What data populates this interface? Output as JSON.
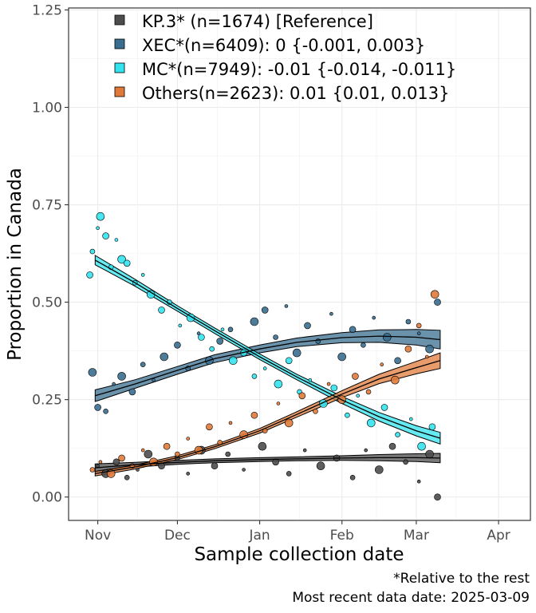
{
  "chart_data": {
    "type": "scatter",
    "xlabel": "Sample collection date",
    "ylabel": "Proportion in Canada",
    "x_ticks": [
      "Nov",
      "Dec",
      "Jan",
      "Feb",
      "Mar",
      "Apr"
    ],
    "y_ticks": [
      "0.00",
      "0.25",
      "0.50",
      "0.75",
      "1.00",
      "1.25"
    ],
    "xlim": [
      "2024-10-21",
      "2025-04-13"
    ],
    "ylim": [
      -0.06,
      1.255
    ],
    "grid": true,
    "legend_position": "top-left",
    "caption_lines": [
      "*Relative to the rest",
      "Most recent data date: 2025-03-09"
    ],
    "series": [
      {
        "name": "KP.3* (n=1674)  [Reference]",
        "color": "#4d4d4d",
        "fit": {
          "x": [
            "2024-10-31",
            "2024-11-15",
            "2024-12-01",
            "2024-12-15",
            "2025-01-01",
            "2025-01-15",
            "2025-02-01",
            "2025-02-15",
            "2025-03-01",
            "2025-03-10"
          ],
          "y": [
            0.075,
            0.083,
            0.089,
            0.093,
            0.096,
            0.098,
            0.1,
            0.101,
            0.101,
            0.1
          ],
          "lower": [
            0.065,
            0.077,
            0.084,
            0.088,
            0.091,
            0.093,
            0.094,
            0.093,
            0.091,
            0.088
          ],
          "upper": [
            0.085,
            0.089,
            0.094,
            0.098,
            0.101,
            0.103,
            0.106,
            0.109,
            0.111,
            0.112
          ]
        },
        "points": [
          {
            "x": "2024-11-01",
            "y": 0.08
          },
          {
            "x": "2024-11-04",
            "y": 0.06
          },
          {
            "x": "2024-11-08",
            "y": 0.09
          },
          {
            "x": "2024-11-12",
            "y": 0.05
          },
          {
            "x": "2024-11-16",
            "y": 0.07
          },
          {
            "x": "2024-11-20",
            "y": 0.11
          },
          {
            "x": "2024-11-25",
            "y": 0.08
          },
          {
            "x": "2024-12-01",
            "y": 0.1
          },
          {
            "x": "2024-12-05",
            "y": 0.06
          },
          {
            "x": "2024-12-10",
            "y": 0.12
          },
          {
            "x": "2024-12-15",
            "y": 0.08
          },
          {
            "x": "2024-12-20",
            "y": 0.11
          },
          {
            "x": "2024-12-26",
            "y": 0.07
          },
          {
            "x": "2025-01-02",
            "y": 0.13
          },
          {
            "x": "2025-01-07",
            "y": 0.09
          },
          {
            "x": "2025-01-12",
            "y": 0.06
          },
          {
            "x": "2025-01-18",
            "y": 0.12
          },
          {
            "x": "2025-01-24",
            "y": 0.08
          },
          {
            "x": "2025-01-30",
            "y": 0.1
          },
          {
            "x": "2025-02-05",
            "y": 0.05
          },
          {
            "x": "2025-02-10",
            "y": 0.12
          },
          {
            "x": "2025-02-15",
            "y": 0.07
          },
          {
            "x": "2025-02-20",
            "y": 0.13
          },
          {
            "x": "2025-02-25",
            "y": 0.09
          },
          {
            "x": "2025-03-02",
            "y": 0.04
          },
          {
            "x": "2025-03-06",
            "y": 0.11
          },
          {
            "x": "2025-03-09",
            "y": 0.0
          }
        ]
      },
      {
        "name": "XEC*(n=6409): 0 {-0.001, 0.003}",
        "color": "#3a6e8f",
        "fit": {
          "x": [
            "2024-10-31",
            "2024-11-15",
            "2024-12-01",
            "2024-12-15",
            "2025-01-01",
            "2025-01-15",
            "2025-02-01",
            "2025-02-15",
            "2025-03-01",
            "2025-03-10"
          ],
          "y": [
            0.26,
            0.29,
            0.325,
            0.355,
            0.38,
            0.397,
            0.409,
            0.413,
            0.41,
            0.404
          ],
          "lower": [
            0.245,
            0.279,
            0.315,
            0.345,
            0.37,
            0.386,
            0.396,
            0.397,
            0.39,
            0.38
          ],
          "upper": [
            0.275,
            0.301,
            0.335,
            0.365,
            0.39,
            0.408,
            0.422,
            0.429,
            0.43,
            0.428
          ]
        },
        "points": [
          {
            "x": "2024-10-30",
            "y": 0.32
          },
          {
            "x": "2024-11-01",
            "y": 0.23
          },
          {
            "x": "2024-11-04",
            "y": 0.22
          },
          {
            "x": "2024-11-07",
            "y": 0.29
          },
          {
            "x": "2024-11-10",
            "y": 0.31
          },
          {
            "x": "2024-11-14",
            "y": 0.27
          },
          {
            "x": "2024-11-18",
            "y": 0.34
          },
          {
            "x": "2024-11-22",
            "y": 0.3
          },
          {
            "x": "2024-11-26",
            "y": 0.36
          },
          {
            "x": "2024-12-01",
            "y": 0.39
          },
          {
            "x": "2024-12-05",
            "y": 0.33
          },
          {
            "x": "2024-12-09",
            "y": 0.42
          },
          {
            "x": "2024-12-13",
            "y": 0.35
          },
          {
            "x": "2024-12-17",
            "y": 0.4
          },
          {
            "x": "2024-12-21",
            "y": 0.43
          },
          {
            "x": "2024-12-26",
            "y": 0.37
          },
          {
            "x": "2024-12-30",
            "y": 0.45
          },
          {
            "x": "2025-01-03",
            "y": 0.48
          },
          {
            "x": "2025-01-07",
            "y": 0.41
          },
          {
            "x": "2025-01-11",
            "y": 0.49
          },
          {
            "x": "2025-01-15",
            "y": 0.37
          },
          {
            "x": "2025-01-19",
            "y": 0.44
          },
          {
            "x": "2025-01-23",
            "y": 0.4
          },
          {
            "x": "2025-01-28",
            "y": 0.47
          },
          {
            "x": "2025-02-01",
            "y": 0.36
          },
          {
            "x": "2025-02-05",
            "y": 0.43
          },
          {
            "x": "2025-02-09",
            "y": 0.39
          },
          {
            "x": "2025-02-13",
            "y": 0.46
          },
          {
            "x": "2025-02-18",
            "y": 0.41
          },
          {
            "x": "2025-02-22",
            "y": 0.35
          },
          {
            "x": "2025-02-26",
            "y": 0.45
          },
          {
            "x": "2025-03-02",
            "y": 0.42
          },
          {
            "x": "2025-03-06",
            "y": 0.38
          },
          {
            "x": "2025-03-09",
            "y": 0.5
          }
        ]
      },
      {
        "name": "MC*(n=7949): -0.01 {-0.014, -0.011}",
        "color": "#33e3ee",
        "fit": {
          "x": [
            "2024-10-31",
            "2024-11-15",
            "2024-12-01",
            "2024-12-15",
            "2025-01-01",
            "2025-01-15",
            "2025-02-01",
            "2025-02-15",
            "2025-03-01",
            "2025-03-10"
          ],
          "y": [
            0.608,
            0.55,
            0.484,
            0.427,
            0.36,
            0.308,
            0.249,
            0.206,
            0.17,
            0.151
          ],
          "lower": [
            0.596,
            0.541,
            0.477,
            0.42,
            0.353,
            0.301,
            0.24,
            0.195,
            0.157,
            0.136
          ],
          "upper": [
            0.62,
            0.559,
            0.491,
            0.434,
            0.367,
            0.315,
            0.258,
            0.217,
            0.183,
            0.166
          ]
        },
        "points": [
          {
            "x": "2024-10-29",
            "y": 0.57
          },
          {
            "x": "2024-10-30",
            "y": 0.63
          },
          {
            "x": "2024-11-01",
            "y": 0.69
          },
          {
            "x": "2024-11-02",
            "y": 0.72
          },
          {
            "x": "2024-11-04",
            "y": 0.67
          },
          {
            "x": "2024-11-06",
            "y": 0.59
          },
          {
            "x": "2024-11-08",
            "y": 0.66
          },
          {
            "x": "2024-11-10",
            "y": 0.61
          },
          {
            "x": "2024-11-12",
            "y": 0.6
          },
          {
            "x": "2024-11-15",
            "y": 0.55
          },
          {
            "x": "2024-11-18",
            "y": 0.57
          },
          {
            "x": "2024-11-21",
            "y": 0.52
          },
          {
            "x": "2024-11-25",
            "y": 0.48
          },
          {
            "x": "2024-11-28",
            "y": 0.5
          },
          {
            "x": "2024-12-02",
            "y": 0.44
          },
          {
            "x": "2024-12-06",
            "y": 0.46
          },
          {
            "x": "2024-12-10",
            "y": 0.41
          },
          {
            "x": "2024-12-14",
            "y": 0.38
          },
          {
            "x": "2024-12-18",
            "y": 0.43
          },
          {
            "x": "2024-12-22",
            "y": 0.35
          },
          {
            "x": "2024-12-26",
            "y": 0.37
          },
          {
            "x": "2024-12-30",
            "y": 0.31
          },
          {
            "x": "2025-01-03",
            "y": 0.33
          },
          {
            "x": "2025-01-08",
            "y": 0.29
          },
          {
            "x": "2025-01-12",
            "y": 0.35
          },
          {
            "x": "2025-01-16",
            "y": 0.27
          },
          {
            "x": "2025-01-20",
            "y": 0.3
          },
          {
            "x": "2025-01-25",
            "y": 0.24
          },
          {
            "x": "2025-01-29",
            "y": 0.28
          },
          {
            "x": "2025-02-03",
            "y": 0.21
          },
          {
            "x": "2025-02-07",
            "y": 0.26
          },
          {
            "x": "2025-02-12",
            "y": 0.19
          },
          {
            "x": "2025-02-17",
            "y": 0.23
          },
          {
            "x": "2025-02-22",
            "y": 0.16
          },
          {
            "x": "2025-02-27",
            "y": 0.2
          },
          {
            "x": "2025-03-03",
            "y": 0.13
          },
          {
            "x": "2025-03-07",
            "y": 0.18
          }
        ]
      },
      {
        "name": "Others(n=2623): 0.01 {0.01, 0.013}",
        "color": "#e07a3a",
        "fit": {
          "x": [
            "2024-10-31",
            "2024-11-15",
            "2024-12-01",
            "2024-12-15",
            "2025-01-01",
            "2025-01-15",
            "2025-02-01",
            "2025-02-15",
            "2025-03-01",
            "2025-03-10"
          ],
          "y": [
            0.06,
            0.077,
            0.101,
            0.129,
            0.17,
            0.212,
            0.264,
            0.303,
            0.332,
            0.35
          ],
          "lower": [
            0.054,
            0.072,
            0.096,
            0.124,
            0.164,
            0.205,
            0.255,
            0.291,
            0.316,
            0.33
          ],
          "upper": [
            0.066,
            0.082,
            0.106,
            0.134,
            0.176,
            0.219,
            0.273,
            0.315,
            0.348,
            0.37
          ]
        },
        "points": [
          {
            "x": "2024-10-30",
            "y": 0.07
          },
          {
            "x": "2024-11-02",
            "y": 0.09
          },
          {
            "x": "2024-11-06",
            "y": 0.06
          },
          {
            "x": "2024-11-10",
            "y": 0.1
          },
          {
            "x": "2024-11-14",
            "y": 0.08
          },
          {
            "x": "2024-11-18",
            "y": 0.12
          },
          {
            "x": "2024-11-22",
            "y": 0.09
          },
          {
            "x": "2024-11-27",
            "y": 0.13
          },
          {
            "x": "2024-12-01",
            "y": 0.11
          },
          {
            "x": "2024-12-05",
            "y": 0.15
          },
          {
            "x": "2024-12-09",
            "y": 0.12
          },
          {
            "x": "2024-12-13",
            "y": 0.18
          },
          {
            "x": "2024-12-17",
            "y": 0.14
          },
          {
            "x": "2024-12-21",
            "y": 0.19
          },
          {
            "x": "2024-12-26",
            "y": 0.16
          },
          {
            "x": "2024-12-30",
            "y": 0.21
          },
          {
            "x": "2025-01-03",
            "y": 0.17
          },
          {
            "x": "2025-01-08",
            "y": 0.24
          },
          {
            "x": "2025-01-12",
            "y": 0.19
          },
          {
            "x": "2025-01-17",
            "y": 0.26
          },
          {
            "x": "2025-01-22",
            "y": 0.22
          },
          {
            "x": "2025-01-27",
            "y": 0.29
          },
          {
            "x": "2025-02-01",
            "y": 0.25
          },
          {
            "x": "2025-02-06",
            "y": 0.31
          },
          {
            "x": "2025-02-11",
            "y": 0.27
          },
          {
            "x": "2025-02-16",
            "y": 0.34
          },
          {
            "x": "2025-02-21",
            "y": 0.3
          },
          {
            "x": "2025-02-26",
            "y": 0.38
          },
          {
            "x": "2025-03-02",
            "y": 0.44
          },
          {
            "x": "2025-03-05",
            "y": 0.36
          },
          {
            "x": "2025-03-08",
            "y": 0.52
          }
        ]
      }
    ]
  }
}
